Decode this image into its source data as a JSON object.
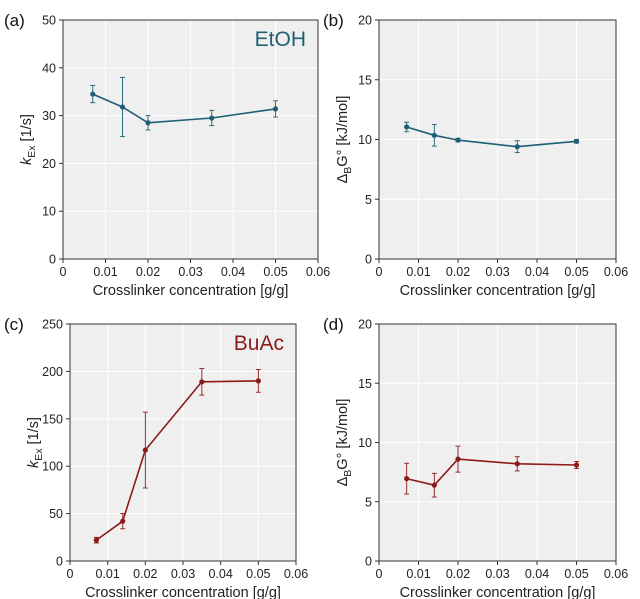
{
  "figure": {
    "background": "#ffffff",
    "plot_background": "#efefef",
    "grid": true
  },
  "chart_data": [
    {
      "panel": "(a)",
      "type": "line",
      "annotation": "EtOH",
      "color": "#1f5f74",
      "xlabel": "Crosslinker concentration [g/g]",
      "ylabel": {
        "main": "k",
        "sub": "Ex",
        "unit": " [1/s]"
      },
      "xlim": [
        0,
        0.06
      ],
      "ylim": [
        0,
        50
      ],
      "xticks": [
        "0",
        "0.01",
        "0.02",
        "0.03",
        "0.04",
        "0.05",
        "0.06"
      ],
      "yticks": [
        "0",
        "10",
        "20",
        "30",
        "40",
        "50"
      ],
      "x": [
        0.007,
        0.014,
        0.02,
        0.035,
        0.05
      ],
      "y": [
        34.5,
        31.8,
        28.5,
        29.5,
        31.4
      ],
      "yerr": [
        1.8,
        6.2,
        1.5,
        1.6,
        1.7
      ]
    },
    {
      "panel": "(b)",
      "type": "line",
      "annotation": "",
      "color": "#1f5f74",
      "xlabel": "Crosslinker concentration [g/g]",
      "ylabel": {
        "main": "Δ",
        "sub": "B",
        "unit": "G° [kJ/mol]"
      },
      "xlim": [
        0,
        0.06
      ],
      "ylim": [
        0,
        20
      ],
      "xticks": [
        "0",
        "0.01",
        "0.02",
        "0.03",
        "0.04",
        "0.05",
        "0.06"
      ],
      "yticks": [
        "0",
        "5",
        "10",
        "15",
        "20"
      ],
      "x": [
        0.007,
        0.014,
        0.02,
        0.035,
        0.05
      ],
      "y": [
        11.05,
        10.35,
        9.95,
        9.4,
        9.85
      ],
      "yerr": [
        0.4,
        0.9,
        0.15,
        0.5,
        0.15
      ]
    },
    {
      "panel": "(c)",
      "type": "line",
      "annotation": "BuAc",
      "color": "#8b1a1a",
      "xlabel": "Crosslinker concentration [g/g]",
      "ylabel": {
        "main": "k",
        "sub": "Ex",
        "unit": " [1/s]"
      },
      "xlim": [
        0,
        0.06
      ],
      "ylim": [
        0,
        250
      ],
      "xticks": [
        "0",
        "0.01",
        "0.02",
        "0.03",
        "0.04",
        "0.05",
        "0.06"
      ],
      "yticks": [
        "0",
        "50",
        "100",
        "150",
        "200",
        "250"
      ],
      "x": [
        0.007,
        0.014,
        0.02,
        0.035,
        0.05
      ],
      "y": [
        22,
        42,
        117,
        189,
        190
      ],
      "yerr": [
        3,
        8,
        40,
        14,
        12
      ]
    },
    {
      "panel": "(d)",
      "type": "line",
      "annotation": "",
      "color": "#8b1a1a",
      "xlabel": "Crosslinker concentration [g/g]",
      "ylabel": {
        "main": "Δ",
        "sub": "B",
        "unit": "G° [kJ/mol]"
      },
      "xlim": [
        0,
        0.06
      ],
      "ylim": [
        0,
        20
      ],
      "xticks": [
        "0",
        "0.01",
        "0.02",
        "0.03",
        "0.04",
        "0.05",
        "0.06"
      ],
      "yticks": [
        "0",
        "5",
        "10",
        "15",
        "20"
      ],
      "x": [
        0.007,
        0.014,
        0.02,
        0.035,
        0.05
      ],
      "y": [
        6.95,
        6.4,
        8.6,
        8.2,
        8.1
      ],
      "yerr": [
        1.3,
        1.0,
        1.1,
        0.6,
        0.3
      ]
    }
  ]
}
